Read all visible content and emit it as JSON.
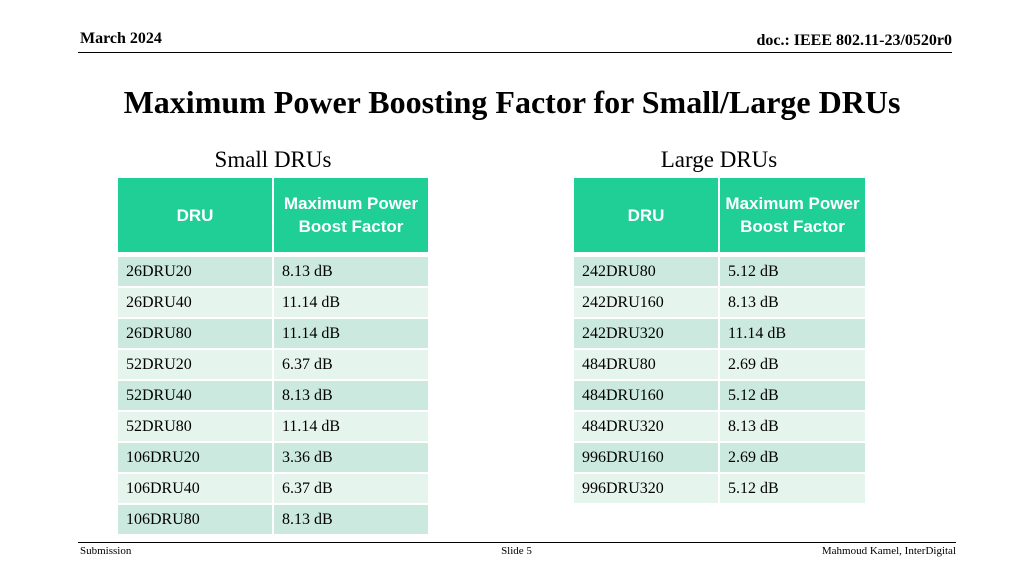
{
  "header": {
    "date": "March 2024",
    "doc": "doc.: IEEE 802.11-23/0520r0"
  },
  "title": "Maximum Power Boosting Factor for Small/Large DRUs",
  "small": {
    "caption": "Small DRUs",
    "columns": [
      "DRU",
      "Maximum Power Boost Factor"
    ],
    "rows": [
      [
        "26DRU20",
        "8.13 dB"
      ],
      [
        "26DRU40",
        "11.14 dB"
      ],
      [
        "26DRU80",
        "11.14 dB"
      ],
      [
        "52DRU20",
        "6.37 dB"
      ],
      [
        "52DRU40",
        "8.13 dB"
      ],
      [
        "52DRU80",
        "11.14 dB"
      ],
      [
        "106DRU20",
        "3.36 dB"
      ],
      [
        "106DRU40",
        "6.37 dB"
      ],
      [
        "106DRU80",
        "8.13 dB"
      ]
    ]
  },
  "large": {
    "caption": "Large DRUs",
    "columns": [
      "DRU",
      "Maximum Power Boost Factor"
    ],
    "rows": [
      [
        "242DRU80",
        "5.12 dB"
      ],
      [
        "242DRU160",
        "8.13 dB"
      ],
      [
        "242DRU320",
        "11.14 dB"
      ],
      [
        "484DRU80",
        "2.69 dB"
      ],
      [
        "484DRU160",
        "5.12 dB"
      ],
      [
        "484DRU320",
        "8.13 dB"
      ],
      [
        "996DRU160",
        "2.69 dB"
      ],
      [
        "996DRU320",
        "5.12 dB"
      ]
    ]
  },
  "footer": {
    "left": "Submission",
    "center": "Slide 5",
    "right": "Mahmoud Kamel, InterDigital"
  }
}
